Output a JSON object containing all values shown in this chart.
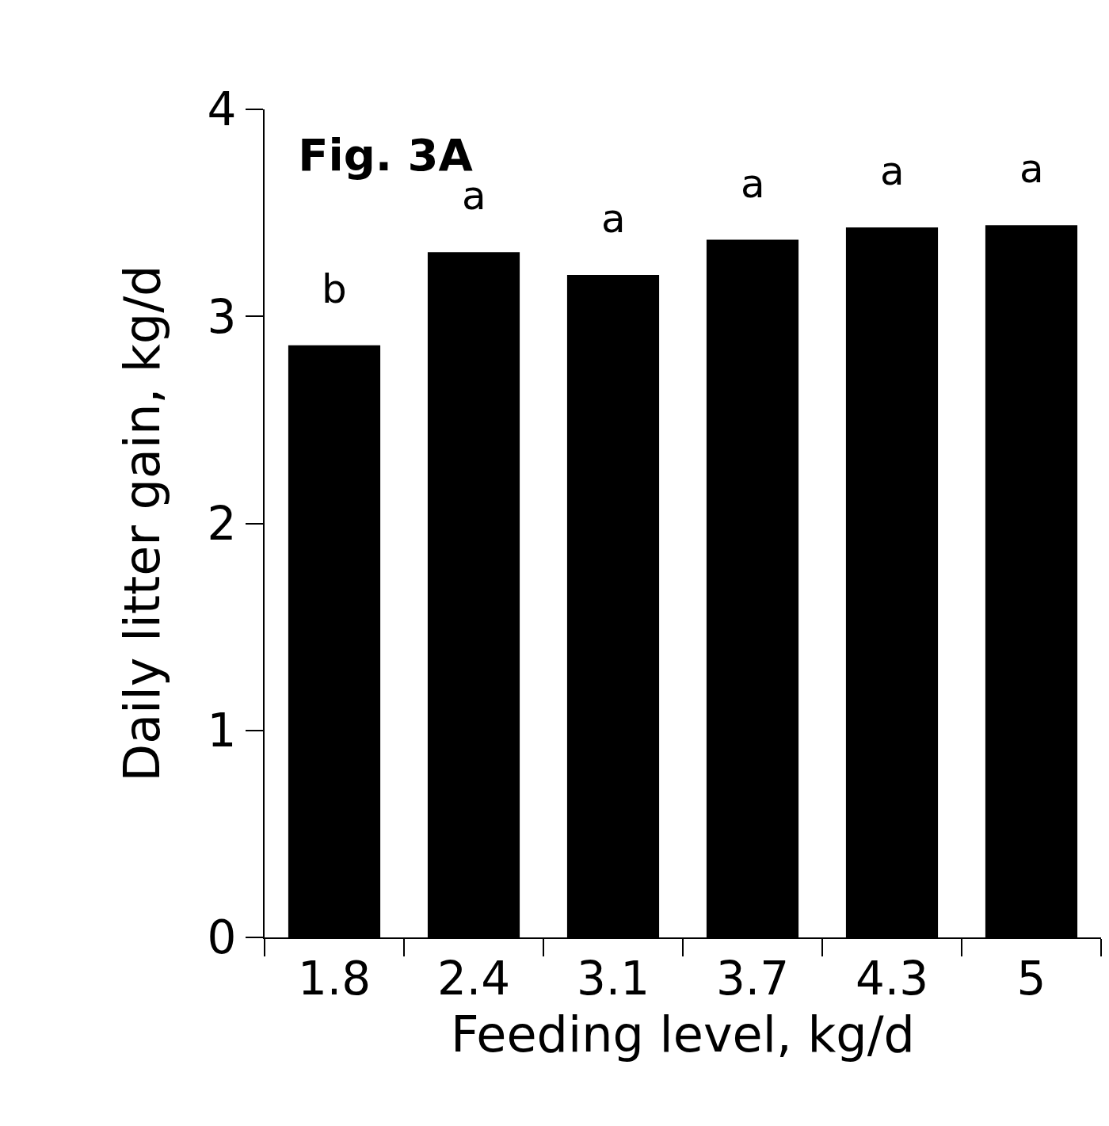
{
  "chart_data": {
    "type": "bar",
    "title": "Fig. 3A",
    "xlabel": "Feeding level, kg/d",
    "ylabel": "Daily litter gain, kg/d",
    "categories": [
      "1.8",
      "2.4",
      "3.1",
      "3.7",
      "4.3",
      "5"
    ],
    "values": [
      2.86,
      3.31,
      3.2,
      3.37,
      3.43,
      3.44
    ],
    "color": "#000000",
    "ylim": [
      0,
      4
    ],
    "yticks": [
      0,
      1,
      2,
      3,
      4
    ],
    "grid": false,
    "legend": false,
    "annotations": [
      {
        "text": "b",
        "x": "1.8",
        "y": 2.86
      },
      {
        "text": "a",
        "x": "2.4",
        "y": 3.31
      },
      {
        "text": "a",
        "x": "3.1",
        "y": 3.2
      },
      {
        "text": "a",
        "x": "3.7",
        "y": 3.37
      },
      {
        "text": "a",
        "x": "4.3",
        "y": 3.43
      },
      {
        "text": "a",
        "x": "5",
        "y": 3.44
      }
    ]
  }
}
